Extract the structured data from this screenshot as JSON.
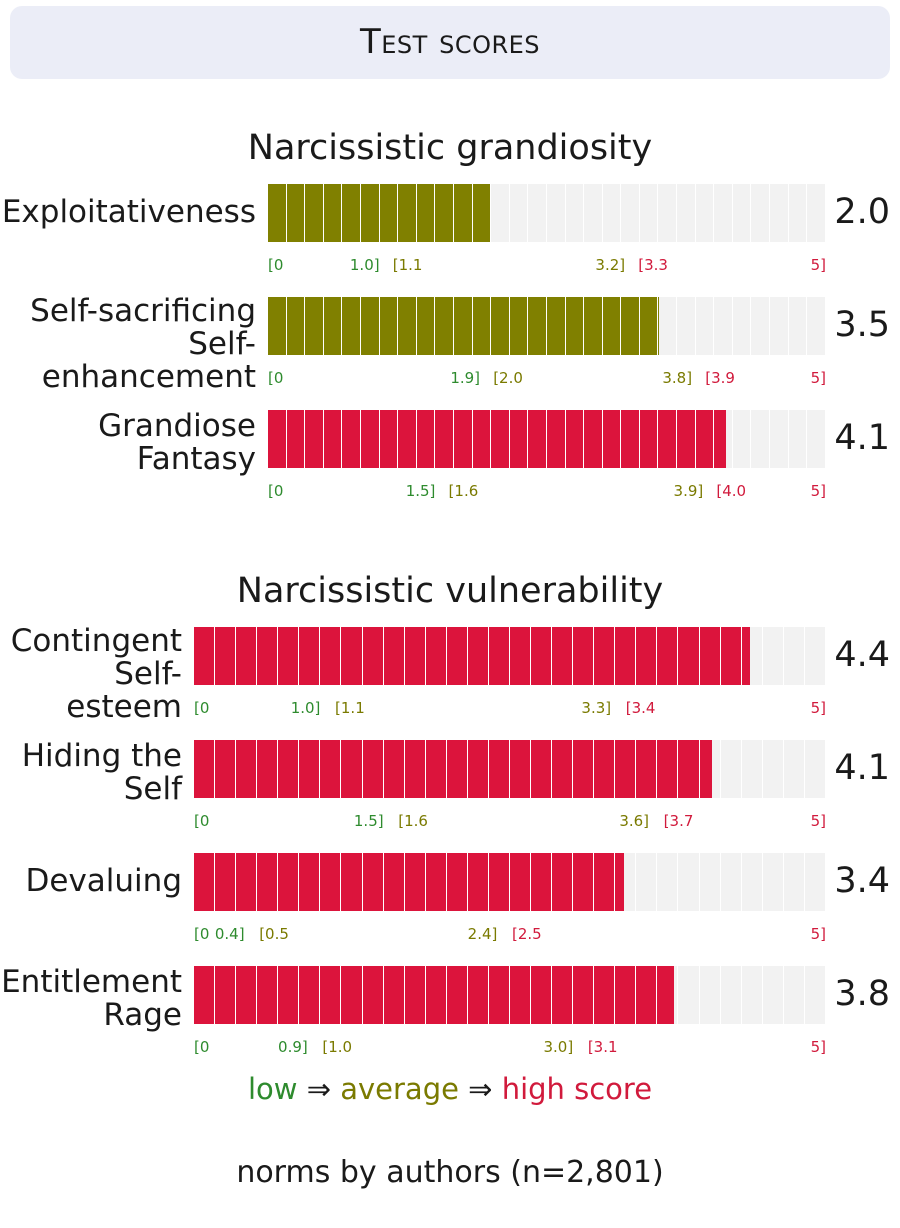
{
  "header": {
    "title": "Test scores"
  },
  "colors": {
    "low": "#2e8b2e",
    "average": "#808000",
    "high": "#dc143c",
    "track": "#f2f2f2"
  },
  "chart_data": [
    {
      "type": "bar",
      "title": "Narcissistic grandiosity",
      "xlim": [
        0,
        5
      ],
      "rows": [
        {
          "label_lines": [
            "Exploitativeness"
          ],
          "value": 2.0,
          "value_text": "2.0",
          "band": "average",
          "ticks": [
            {
              "text": "[0",
              "at": 0,
              "cls": "green"
            },
            {
              "text": "1.0]",
              "at": 1.0,
              "cls": "green",
              "align": "end"
            },
            {
              "text": "[1.1",
              "at": 1.1,
              "cls": "olive"
            },
            {
              "text": "3.2]",
              "at": 3.2,
              "cls": "olive",
              "align": "end"
            },
            {
              "text": "[3.3",
              "at": 3.3,
              "cls": "red"
            },
            {
              "text": "5]",
              "at": 5,
              "cls": "red",
              "align": "end"
            }
          ]
        },
        {
          "label_lines": [
            "Self-sacrificing",
            "Self-",
            "enhancement"
          ],
          "value": 3.5,
          "value_text": "3.5",
          "band": "average",
          "ticks": [
            {
              "text": "[0",
              "at": 0,
              "cls": "green"
            },
            {
              "text": "1.9]",
              "at": 1.9,
              "cls": "green",
              "align": "end"
            },
            {
              "text": "[2.0",
              "at": 2.0,
              "cls": "olive"
            },
            {
              "text": "3.8]",
              "at": 3.8,
              "cls": "olive",
              "align": "end"
            },
            {
              "text": "[3.9",
              "at": 3.9,
              "cls": "red"
            },
            {
              "text": "5]",
              "at": 5,
              "cls": "red",
              "align": "end"
            }
          ]
        },
        {
          "label_lines": [
            "Grandiose",
            "Fantasy"
          ],
          "value": 4.1,
          "value_text": "4.1",
          "band": "high",
          "ticks": [
            {
              "text": "[0",
              "at": 0,
              "cls": "green"
            },
            {
              "text": "1.5]",
              "at": 1.5,
              "cls": "green",
              "align": "end"
            },
            {
              "text": "[1.6",
              "at": 1.6,
              "cls": "olive"
            },
            {
              "text": "3.9]",
              "at": 3.9,
              "cls": "olive",
              "align": "end"
            },
            {
              "text": "[4.0",
              "at": 4.0,
              "cls": "red"
            },
            {
              "text": "5]",
              "at": 5,
              "cls": "red",
              "align": "end"
            }
          ]
        }
      ]
    },
    {
      "type": "bar",
      "title": "Narcissistic vulnerability",
      "xlim": [
        0,
        5
      ],
      "rows": [
        {
          "label_lines": [
            "Contingent",
            "Self-",
            "esteem"
          ],
          "value": 4.4,
          "value_text": "4.4",
          "band": "high",
          "ticks": [
            {
              "text": "[0",
              "at": 0,
              "cls": "green"
            },
            {
              "text": "1.0]",
              "at": 1.0,
              "cls": "green",
              "align": "end"
            },
            {
              "text": "[1.1",
              "at": 1.1,
              "cls": "olive"
            },
            {
              "text": "3.3]",
              "at": 3.3,
              "cls": "olive",
              "align": "end"
            },
            {
              "text": "[3.4",
              "at": 3.4,
              "cls": "red"
            },
            {
              "text": "5]",
              "at": 5,
              "cls": "red",
              "align": "end"
            }
          ]
        },
        {
          "label_lines": [
            "Hiding the",
            "Self"
          ],
          "value": 4.1,
          "value_text": "4.1",
          "band": "high",
          "ticks": [
            {
              "text": "[0",
              "at": 0,
              "cls": "green"
            },
            {
              "text": "1.5]",
              "at": 1.5,
              "cls": "green",
              "align": "end"
            },
            {
              "text": "[1.6",
              "at": 1.6,
              "cls": "olive"
            },
            {
              "text": "3.6]",
              "at": 3.6,
              "cls": "olive",
              "align": "end"
            },
            {
              "text": "[3.7",
              "at": 3.7,
              "cls": "red"
            },
            {
              "text": "5]",
              "at": 5,
              "cls": "red",
              "align": "end"
            }
          ]
        },
        {
          "label_lines": [
            "Devaluing"
          ],
          "value": 3.4,
          "value_text": "3.4",
          "band": "high",
          "ticks": [
            {
              "text": "[0",
              "at": 0,
              "cls": "green"
            },
            {
              "text": "0.4]",
              "at": 0.4,
              "cls": "green",
              "align": "end"
            },
            {
              "text": "[0.5",
              "at": 0.5,
              "cls": "olive"
            },
            {
              "text": "2.4]",
              "at": 2.4,
              "cls": "olive",
              "align": "end"
            },
            {
              "text": "[2.5",
              "at": 2.5,
              "cls": "red"
            },
            {
              "text": "5]",
              "at": 5,
              "cls": "red",
              "align": "end"
            }
          ]
        },
        {
          "label_lines": [
            "Entitlement",
            "Rage"
          ],
          "value": 3.8,
          "value_text": "3.8",
          "band": "high",
          "ticks": [
            {
              "text": "[0",
              "at": 0,
              "cls": "green"
            },
            {
              "text": "0.9]",
              "at": 0.9,
              "cls": "green",
              "align": "end"
            },
            {
              "text": "[1.0",
              "at": 1.0,
              "cls": "olive"
            },
            {
              "text": "3.0]",
              "at": 3.0,
              "cls": "olive",
              "align": "end"
            },
            {
              "text": "[3.1",
              "at": 3.1,
              "cls": "red"
            },
            {
              "text": "5]",
              "at": 5,
              "cls": "red",
              "align": "end"
            }
          ]
        }
      ]
    }
  ],
  "legend": {
    "low": "low",
    "arrow": "⇒",
    "average": "average",
    "high": "high score"
  },
  "footnote": "norms by authors (n=2,801)"
}
